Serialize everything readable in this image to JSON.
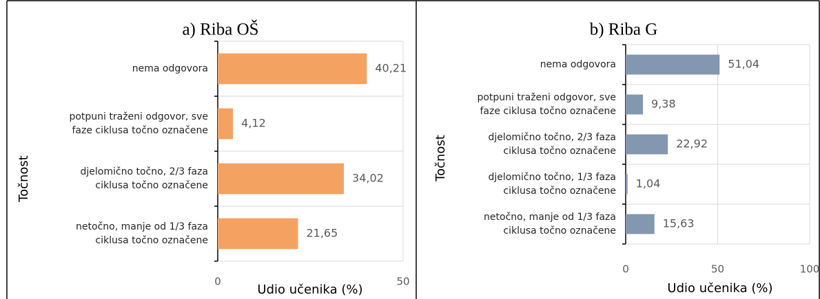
{
  "chart_data": [
    {
      "type": "hbar",
      "title": "a) Riba OŠ",
      "xlabel": "Udio učenika (%)",
      "ylabel": "Točnost",
      "categories": [
        "nema odgovora",
        "potpuni traženi odgovor, sve faze ciklusa točno označene",
        "djelomično točno, 2/3 faza ciklusa točno označene",
        "netočno, manje od 1/3 faza ciklusa točno označene"
      ],
      "values": [
        40.21,
        4.12,
        34.02,
        21.65
      ],
      "value_labels": [
        "40,21",
        "4,12",
        "34,02",
        "21,65"
      ],
      "color": "#f4a261",
      "xlim": [
        0,
        50
      ],
      "xticks": [
        0,
        50
      ],
      "grid": false
    },
    {
      "type": "hbar",
      "title": "b) Riba G",
      "xlabel": "Udio učenika (%)",
      "ylabel": "Točnost",
      "categories": [
        "nema odgovora",
        "potpuni traženi odgovor, sve faze ciklusa točno označene",
        "djelomično točno, 2/3 faza ciklusa točno označene",
        "djelomično točno, 1/3 faza ciklusa točno označene",
        "netočno, manje od 1/3 faza ciklusa točno označene"
      ],
      "values": [
        51.04,
        9.38,
        22.92,
        1.04,
        15.63
      ],
      "value_labels": [
        "51,04",
        "9,38",
        "22,92",
        "1,04",
        "15,63"
      ],
      "color": "#8497b0",
      "xlim": [
        0,
        100
      ],
      "xticks": [
        0,
        50,
        100
      ],
      "grid": true
    }
  ]
}
